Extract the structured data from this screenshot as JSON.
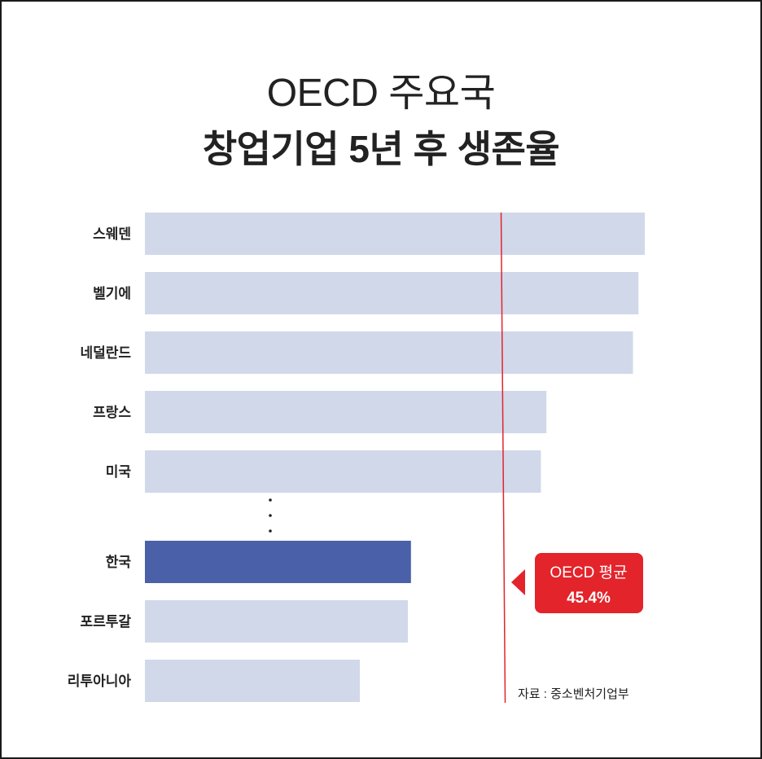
{
  "title_line1": "OECD 주요국",
  "title_line2": "창업기업 5년 후 생존율",
  "callout": {
    "line1": "OECD 평균",
    "line2": "45.4%"
  },
  "source": "자료 : 중소벤처기업부",
  "colors": {
    "bar": "#d1d8ea",
    "highlight": "#4a60a9",
    "avg_line": "#e3242b",
    "callout_bg": "#e3242b",
    "text": "#222222"
  },
  "chart_data": {
    "type": "bar",
    "orientation": "horizontal",
    "categories": [
      "스웨덴",
      "벨기에",
      "네덜란드",
      "프랑스",
      "미국",
      "한국",
      "포르투갈",
      "리투아니아"
    ],
    "values": [
      63.5,
      62.7,
      62.0,
      51.0,
      50.3,
      33.8,
      33.4,
      27.3
    ],
    "highlight": "한국",
    "gap_after": "미국",
    "reference_line": {
      "label": "OECD 평균",
      "value": 45.4
    },
    "title": "OECD 주요국 창업기업 5년 후 생존율",
    "xlim": [
      0,
      100
    ]
  }
}
